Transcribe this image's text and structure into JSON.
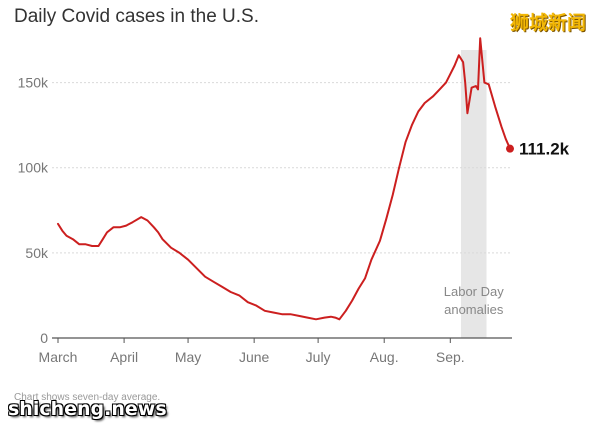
{
  "watermarks": {
    "top_right": "狮城新闻",
    "bottom_left": "shicheng.news"
  },
  "chart_data": {
    "type": "line",
    "title": "Daily Covid cases in the U.S.",
    "footnote": "Chart shows seven-day average.",
    "xlabel": "",
    "ylabel": "",
    "x_ticks": [
      "March",
      "April",
      "May",
      "June",
      "July",
      "Aug.",
      "Sep."
    ],
    "y_ticks": [
      "0",
      "50k",
      "100k",
      "150k"
    ],
    "y_tick_values": [
      0,
      50000,
      100000,
      150000
    ],
    "ylim": [
      0,
      175000
    ],
    "xlim": [
      "2021-03-01",
      "2021-09-29"
    ],
    "grid": true,
    "line_color": "#cc1f1f",
    "annotation": {
      "text_lines": [
        "Labor Day",
        "anomalies"
      ],
      "band_start": "2021-09-06",
      "band_end": "2021-09-18",
      "band_color": "#e6e6e6"
    },
    "last_value_label": "111.2k",
    "series": [
      {
        "x": [
          "2021-03-01",
          "2021-03-03",
          "2021-03-05",
          "2021-03-08",
          "2021-03-11",
          "2021-03-14",
          "2021-03-17",
          "2021-03-20",
          "2021-03-22",
          "2021-03-24",
          "2021-03-27",
          "2021-03-30",
          "2021-04-02",
          "2021-04-05",
          "2021-04-09",
          "2021-04-12",
          "2021-04-15",
          "2021-04-17",
          "2021-04-19",
          "2021-04-23",
          "2021-04-27",
          "2021-05-01",
          "2021-05-05",
          "2021-05-09",
          "2021-05-13",
          "2021-05-17",
          "2021-05-21",
          "2021-05-25",
          "2021-05-29",
          "2021-06-02",
          "2021-06-06",
          "2021-06-10",
          "2021-06-14",
          "2021-06-18",
          "2021-06-22",
          "2021-06-26",
          "2021-06-30",
          "2021-07-04",
          "2021-07-07",
          "2021-07-09",
          "2021-07-11",
          "2021-07-14",
          "2021-07-17",
          "2021-07-20",
          "2021-07-23",
          "2021-07-26",
          "2021-07-30",
          "2021-08-02",
          "2021-08-05",
          "2021-08-08",
          "2021-08-11",
          "2021-08-14",
          "2021-08-17",
          "2021-08-20",
          "2021-08-24",
          "2021-08-27",
          "2021-08-30",
          "2021-09-01",
          "2021-09-03",
          "2021-09-05",
          "2021-09-07",
          "2021-09-08",
          "2021-09-09",
          "2021-09-11",
          "2021-09-13",
          "2021-09-14",
          "2021-09-15",
          "2021-09-17",
          "2021-09-19",
          "2021-09-22",
          "2021-09-25",
          "2021-09-27",
          "2021-09-29"
        ],
        "values": [
          67000,
          63000,
          60000,
          58000,
          55000,
          55000,
          54000,
          54000,
          58000,
          62000,
          65000,
          65000,
          66000,
          68000,
          71000,
          69000,
          65000,
          62000,
          58000,
          53000,
          50000,
          46000,
          41000,
          36000,
          33000,
          30000,
          27000,
          25000,
          21000,
          19000,
          16000,
          15000,
          14000,
          14000,
          13000,
          12000,
          11000,
          12000,
          12500,
          12000,
          11000,
          16000,
          22000,
          29000,
          35000,
          46000,
          57000,
          70000,
          84000,
          100000,
          115000,
          125000,
          133000,
          138000,
          142000,
          146000,
          150000,
          155000,
          160000,
          166000,
          162000,
          150000,
          132000,
          147000,
          148000,
          146000,
          176000,
          150000,
          149000,
          136000,
          124000,
          117000,
          111200
        ]
      }
    ]
  }
}
